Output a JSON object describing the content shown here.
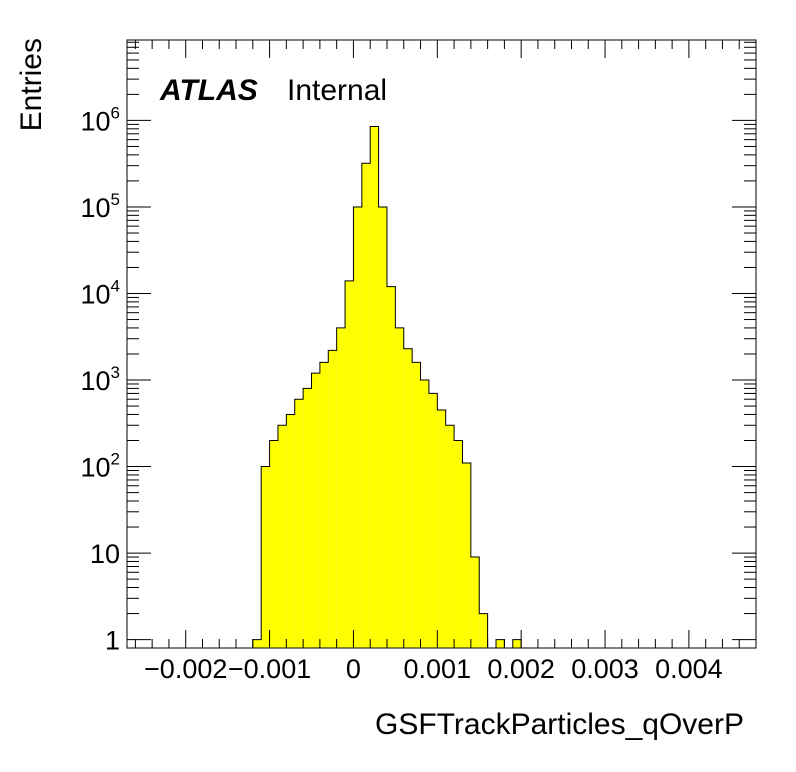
{
  "chart_data": {
    "type": "bar",
    "style": "histogram",
    "xlabel": "GSFTrackParticles_qOverP",
    "ylabel": "Entries",
    "yscale": "log",
    "xlim": [
      -0.0027,
      0.0048
    ],
    "ylim": [
      0.8,
      8500000
    ],
    "grid": false,
    "bin_width": 0.0001,
    "fill_color": "#ffff00",
    "edge_color": "#000000",
    "x_tick_labels": [
      "−0.002",
      "−0.001",
      "0",
      "0.001",
      "0.002",
      "0.003",
      "0.004"
    ],
    "x_ticks": [
      -0.002,
      -0.001,
      0,
      0.001,
      0.002,
      0.003,
      0.004
    ],
    "y_ticks": [
      {
        "value": 1,
        "base": "1",
        "exp": ""
      },
      {
        "value": 10,
        "base": "10",
        "exp": ""
      },
      {
        "value": 100,
        "base": "10",
        "exp": "2"
      },
      {
        "value": 1000,
        "base": "10",
        "exp": "3"
      },
      {
        "value": 10000,
        "base": "10",
        "exp": "4"
      },
      {
        "value": 100000,
        "base": "10",
        "exp": "5"
      },
      {
        "value": 1000000,
        "base": "10",
        "exp": "6"
      }
    ],
    "bins": [
      {
        "x_low": -0.0012,
        "y": 1
      },
      {
        "x_low": -0.0011,
        "y": 100
      },
      {
        "x_low": -0.001,
        "y": 200
      },
      {
        "x_low": -0.0009,
        "y": 300
      },
      {
        "x_low": -0.0008,
        "y": 400
      },
      {
        "x_low": -0.0007,
        "y": 600
      },
      {
        "x_low": -0.0006,
        "y": 800
      },
      {
        "x_low": -0.0005,
        "y": 1200
      },
      {
        "x_low": -0.0004,
        "y": 1600
      },
      {
        "x_low": -0.0003,
        "y": 2200
      },
      {
        "x_low": -0.0002,
        "y": 4000
      },
      {
        "x_low": -0.0001,
        "y": 14000
      },
      {
        "x_low": 0.0,
        "y": 100000
      },
      {
        "x_low": 0.0001,
        "y": 320000
      },
      {
        "x_low": 0.0002,
        "y": 850000
      },
      {
        "x_low": 0.0003,
        "y": 100000
      },
      {
        "x_low": 0.0004,
        "y": 12000
      },
      {
        "x_low": 0.0005,
        "y": 4000
      },
      {
        "x_low": 0.0006,
        "y": 2300
      },
      {
        "x_low": 0.0007,
        "y": 1600
      },
      {
        "x_low": 0.0008,
        "y": 1000
      },
      {
        "x_low": 0.0009,
        "y": 700
      },
      {
        "x_low": 0.001,
        "y": 450
      },
      {
        "x_low": 0.0011,
        "y": 300
      },
      {
        "x_low": 0.0012,
        "y": 200
      },
      {
        "x_low": 0.0013,
        "y": 110
      },
      {
        "x_low": 0.0014,
        "y": 9
      },
      {
        "x_low": 0.0015,
        "y": 2
      },
      {
        "x_low": 0.0017,
        "y": 1
      },
      {
        "x_low": 0.0019,
        "y": 1
      }
    ],
    "annotation": {
      "logo": "ATLAS",
      "label": "Internal"
    }
  }
}
